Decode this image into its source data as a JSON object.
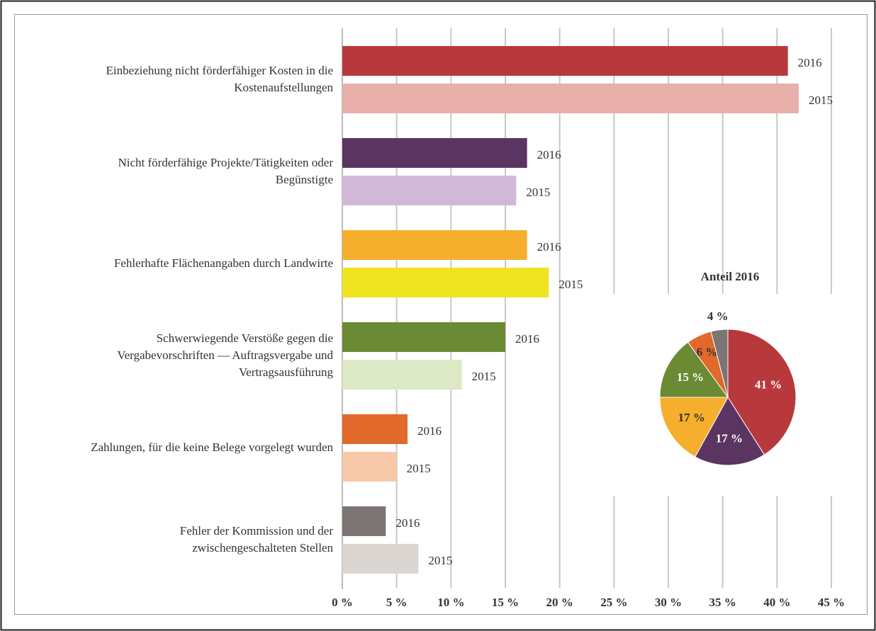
{
  "chart_data": [
    {
      "type": "barh",
      "categories": [
        "Einbeziehung nicht förderfähiger Kosten in die\nKostenaufstellungen",
        "Nicht förderfähige Projekte/Tätigkeiten oder\nBegünstigte",
        "Fehlerhafte Flächenangaben durch Landwirte",
        "Schwerwiegende Verstöße gegen die\nVergabevorschriften — Auftragsvergabe und\nVertragsausführung",
        "Zahlungen, für die keine Belege vorgelegt wurden",
        "Fehler der Kommission und der\nzwischengeschalteten Stellen"
      ],
      "series": [
        {
          "name": "2016",
          "colors": [
            "#b8393b",
            "#5b3562",
            "#f6ae2d",
            "#6b8a34",
            "#e0692b",
            "#7d7574"
          ],
          "values": [
            41,
            17,
            17,
            15,
            6,
            4
          ]
        },
        {
          "name": "2015",
          "colors": [
            "#e8afab",
            "#d2b8d8",
            "#eee31f",
            "#dde8c4",
            "#f8c9a8",
            "#dcd6d3"
          ],
          "values": [
            42,
            16,
            19,
            11,
            5,
            7
          ]
        }
      ],
      "xlim": [
        0,
        45
      ],
      "xticks": [
        {
          "value": 0,
          "label": "0 %"
        },
        {
          "value": 5,
          "label": "5 %"
        },
        {
          "value": 10,
          "label": "10 %"
        },
        {
          "value": 15,
          "label": "15 %"
        },
        {
          "value": 20,
          "label": "20 %"
        },
        {
          "value": 25,
          "label": "25 %"
        },
        {
          "value": 30,
          "label": "30 %"
        },
        {
          "value": 35,
          "label": "35 %"
        },
        {
          "value": 40,
          "label": "40 %"
        },
        {
          "value": 45,
          "label": "45 %"
        }
      ],
      "grid": true
    },
    {
      "type": "pie",
      "title": "Anteil 2016",
      "values": [
        41,
        17,
        17,
        15,
        6,
        4
      ],
      "value_labels": [
        "41 %",
        "17 %",
        "17 %",
        "15 %",
        "6 %",
        "4 %"
      ],
      "colors": [
        "#b8393b",
        "#5b3562",
        "#f6ae2d",
        "#6b8a34",
        "#e0692b",
        "#7d7574"
      ]
    }
  ]
}
